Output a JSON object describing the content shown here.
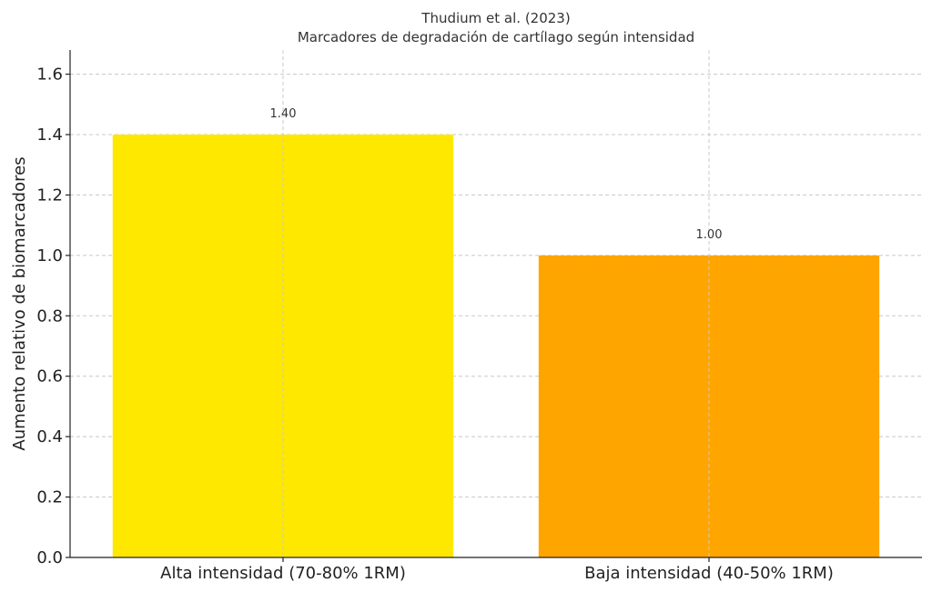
{
  "chart_data": {
    "type": "bar",
    "title": "Thudium et al. (2023)",
    "subtitle": "Marcadores de degradación de cartílago según intensidad",
    "xlabel": "",
    "ylabel": "Aumento relativo de biomarcadores",
    "categories": [
      "Alta intensidad (70-80% 1RM)",
      "Baja intensidad (40-50% 1RM)"
    ],
    "values": [
      1.4,
      1.0
    ],
    "data_labels": [
      "1.40",
      "1.00"
    ],
    "colors": [
      "#FFE800",
      "#FFA500"
    ],
    "ylim": [
      0,
      1.68
    ],
    "yticks": [
      0.0,
      0.2,
      0.4,
      0.6,
      0.8,
      1.0,
      1.2,
      1.4,
      1.6
    ],
    "ytick_labels": [
      "0.0",
      "0.2",
      "0.4",
      "0.6",
      "0.8",
      "1.0",
      "1.2",
      "1.4",
      "1.6"
    ],
    "grid": true
  }
}
